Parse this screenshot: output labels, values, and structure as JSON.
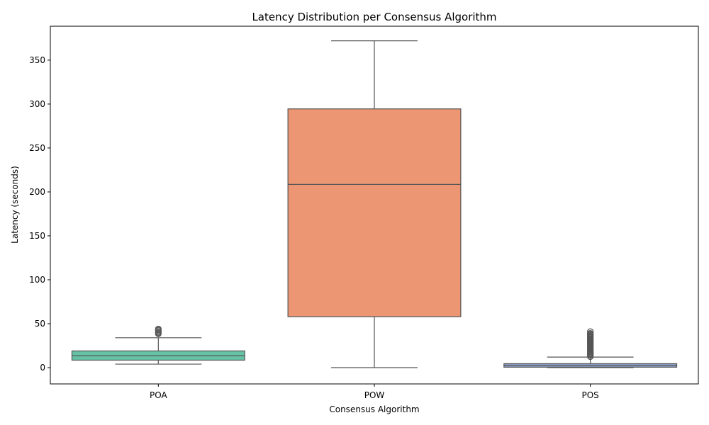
{
  "chart_data": {
    "type": "box",
    "title": "Latency Distribution per Consensus Algorithm",
    "xlabel": "Consensus Algorithm",
    "ylabel": "Latency (seconds)",
    "ylim": [
      -18,
      385
    ],
    "yticks": [
      0,
      50,
      100,
      150,
      200,
      250,
      300,
      350
    ],
    "grid": false,
    "categories": [
      "POA",
      "POW",
      "POS"
    ],
    "boxes": [
      {
        "category": "POA",
        "whisker_low": 4,
        "q1": 8.5,
        "median": 13.5,
        "q3": 19,
        "whisker_high": 34,
        "color": "#66c2a5",
        "outliers": [
          38.5,
          39.5,
          40.5,
          42,
          43,
          44
        ]
      },
      {
        "category": "POW",
        "whisker_low": 0,
        "q1": 58,
        "median": 208.5,
        "q3": 294.5,
        "whisker_high": 372,
        "color": "#ec9674",
        "outliers": []
      },
      {
        "category": "POS",
        "whisker_low": 0,
        "q1": 0.5,
        "median": 2.5,
        "q3": 4.5,
        "whisker_high": 12,
        "color": "#8da0cb",
        "outliers": [
          12.5,
          14,
          15,
          16,
          17,
          18,
          19,
          20,
          21,
          22,
          23,
          24,
          25,
          26,
          27,
          28,
          29,
          30,
          31,
          32,
          33,
          34,
          35,
          36,
          37,
          38,
          39,
          41
        ]
      }
    ]
  }
}
